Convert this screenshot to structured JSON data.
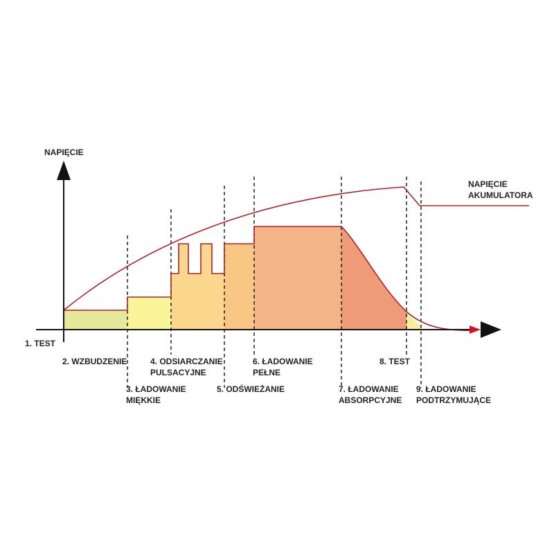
{
  "axes": {
    "y_label": "NAPIĘCIE",
    "x_start_label": "1. TEST"
  },
  "curve": {
    "label_line1": "NAPIĘCIE",
    "label_line2": "AKUMULATORA"
  },
  "stages": [
    {
      "line1": "2. WZBUDZENIE",
      "line2": ""
    },
    {
      "line1": "3. ŁADOWANIE",
      "line2": "MIĘKKIE"
    },
    {
      "line1": "4. ODSIARCZANIE",
      "line2": "PULSACYJNE"
    },
    {
      "line1": "5. ODŚWIEŻANIE",
      "line2": ""
    },
    {
      "line1": "6. ŁADOWANIE",
      "line2": "PEŁNE"
    },
    {
      "line1": "7. ŁADOWANIE",
      "line2": "ABSORPCYJNE"
    },
    {
      "line1": "8. TEST",
      "line2": ""
    },
    {
      "line1": "9. ŁADOWANIE",
      "line2": "PODTRZYMUJĄCE"
    }
  ],
  "colors": {
    "axis": "#111111",
    "curve": "#b0202a",
    "arrow_tip": "#d4111c",
    "stage2_fill": "#e6e89a",
    "stage3_fill": "#fbf59a",
    "stage4_fill": "#fbd78e",
    "stage5_fill": "#f8c784",
    "stage6_fill": "#f3b585",
    "stage7_fill": "#ee9c78",
    "stage8_fill": "#f8ef9a"
  }
}
